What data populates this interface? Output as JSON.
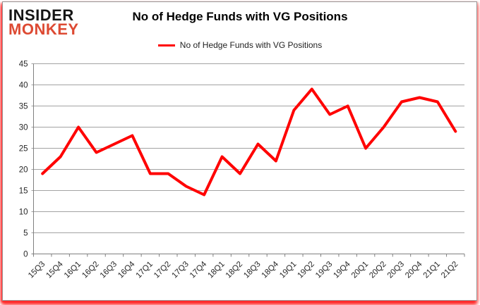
{
  "logo": {
    "line1": "INSIDER",
    "line2": "MONKEY",
    "line1_color": "#151515",
    "line2_color": "#dd4a33"
  },
  "header": {
    "title": "No of Hedge Funds with VG Positions"
  },
  "legend": {
    "label": "No of Hedge Funds with VG Positions",
    "swatch_color": "#ff0000"
  },
  "chart_data": {
    "type": "line",
    "title": "No of Hedge Funds with VG Positions",
    "categories": [
      "15Q3",
      "15Q4",
      "16Q1",
      "16Q2",
      "16Q3",
      "16Q4",
      "17Q1",
      "17Q2",
      "17Q3",
      "17Q4",
      "18Q1",
      "18Q2",
      "18Q3",
      "18Q4",
      "19Q1",
      "19Q2",
      "19Q3",
      "19Q4",
      "20Q1",
      "20Q2",
      "20Q3",
      "20Q4",
      "21Q1",
      "21Q2"
    ],
    "series": [
      {
        "name": "No of Hedge Funds with VG Positions",
        "color": "#ff0000",
        "values": [
          19,
          23,
          30,
          24,
          26,
          28,
          19,
          19,
          16,
          14,
          23,
          19,
          26,
          22,
          34,
          39,
          33,
          35,
          25,
          30,
          36,
          37,
          36,
          29
        ]
      }
    ],
    "xlabel": "",
    "ylabel": "",
    "ylim": [
      0,
      45
    ],
    "yticks": [
      0,
      5,
      10,
      15,
      20,
      25,
      30,
      35,
      40,
      45
    ],
    "grid": true,
    "legend_position": "top-center"
  },
  "colors": {
    "gridline": "#a3a3a3",
    "axis": "#808080",
    "tick_label": "#262626",
    "line": "#ff0000",
    "background": "#ffffff",
    "border_glow": "#ff0000"
  }
}
